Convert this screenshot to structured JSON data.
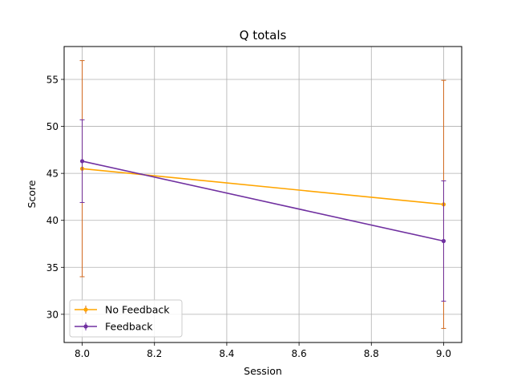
{
  "chart_data": {
    "type": "line",
    "title": "Q totals",
    "xlabel": "Session",
    "ylabel": "Score",
    "xlim": [
      7.95,
      9.05
    ],
    "ylim": [
      27,
      58.5
    ],
    "x_ticks": [
      8.0,
      8.2,
      8.4,
      8.6,
      8.8,
      9.0
    ],
    "x_tick_labels": [
      "8.0",
      "8.2",
      "8.4",
      "8.6",
      "8.8",
      "9.0"
    ],
    "y_ticks": [
      30,
      35,
      40,
      45,
      50,
      55
    ],
    "y_tick_labels": [
      "30",
      "35",
      "40",
      "45",
      "50",
      "55"
    ],
    "grid": true,
    "legend_position": "lower-left",
    "series": [
      {
        "name": "No Feedback",
        "color": "#ffa500",
        "errorbar_color": "#d2691e",
        "x": [
          8,
          9
        ],
        "y": [
          45.5,
          41.7
        ],
        "error": [
          11.5,
          13.2
        ]
      },
      {
        "name": "Feedback",
        "color": "#7030a0",
        "errorbar_color": "#7030a0",
        "x": [
          8,
          9
        ],
        "y": [
          46.3,
          37.8
        ],
        "error": [
          4.4,
          6.4
        ]
      }
    ]
  }
}
